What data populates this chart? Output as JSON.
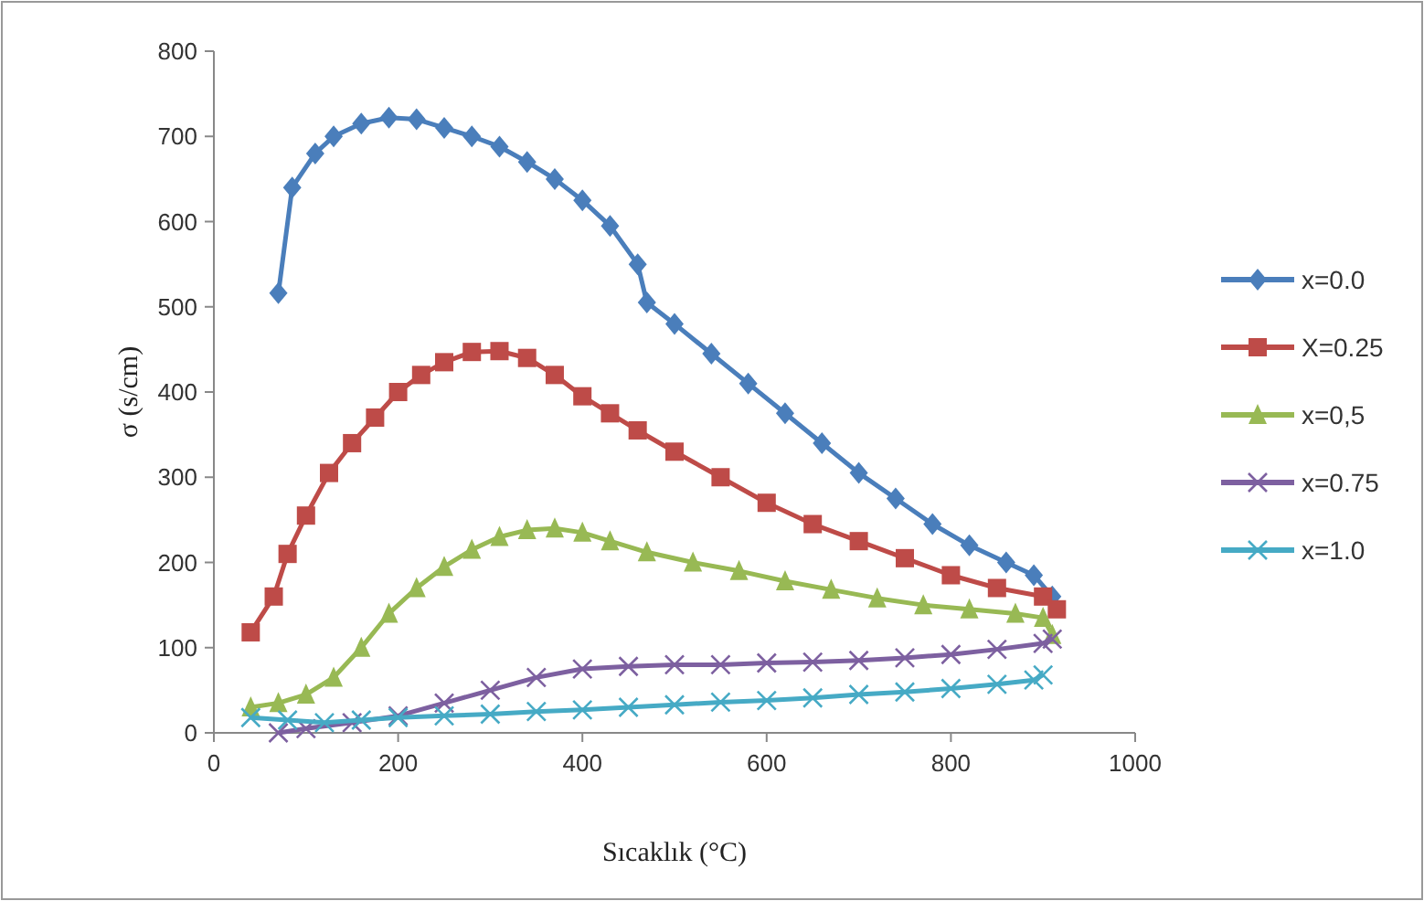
{
  "chart_data": {
    "type": "line",
    "xlabel": "Sıcaklık (°C)",
    "ylabel": "σ (s/cm)",
    "xlim": [
      0,
      1000
    ],
    "xticks": [
      0,
      200,
      400,
      600,
      800,
      1000
    ],
    "ylim": [
      0,
      800
    ],
    "yticks": [
      0,
      100,
      200,
      300,
      400,
      500,
      600,
      700,
      800
    ],
    "grid": false,
    "legend": "right",
    "series": [
      {
        "name": "x=0.0",
        "color": "#4a7ebb",
        "marker": "diamond",
        "x": [
          70,
          85,
          110,
          130,
          160,
          190,
          220,
          250,
          280,
          310,
          340,
          370,
          400,
          430,
          460,
          470,
          500,
          540,
          580,
          620,
          660,
          700,
          740,
          780,
          820,
          860,
          890,
          910
        ],
        "values": [
          516,
          640,
          680,
          700,
          715,
          722,
          720,
          710,
          700,
          688,
          670,
          650,
          625,
          595,
          550,
          505,
          480,
          445,
          410,
          375,
          340,
          305,
          275,
          245,
          220,
          200,
          185,
          160
        ]
      },
      {
        "name": "X=0.25",
        "color": "#be4b48",
        "marker": "square",
        "x": [
          40,
          65,
          80,
          100,
          125,
          150,
          175,
          200,
          225,
          250,
          280,
          310,
          340,
          370,
          400,
          430,
          460,
          500,
          550,
          600,
          650,
          700,
          750,
          800,
          850,
          900,
          915
        ],
        "values": [
          118,
          160,
          210,
          255,
          305,
          340,
          370,
          400,
          420,
          435,
          447,
          448,
          440,
          420,
          395,
          375,
          355,
          330,
          300,
          270,
          245,
          225,
          205,
          185,
          170,
          160,
          145
        ]
      },
      {
        "name": "x=0,5",
        "color": "#98b954",
        "marker": "triangle",
        "x": [
          40,
          70,
          100,
          130,
          160,
          190,
          220,
          250,
          280,
          310,
          340,
          370,
          400,
          430,
          470,
          520,
          570,
          620,
          670,
          720,
          770,
          820,
          870,
          900,
          910
        ],
        "values": [
          30,
          35,
          45,
          65,
          100,
          140,
          170,
          195,
          215,
          230,
          238,
          240,
          235,
          225,
          212,
          200,
          190,
          178,
          168,
          158,
          150,
          145,
          140,
          135,
          115
        ]
      },
      {
        "name": "x=0.75",
        "color": "#7d60a0",
        "marker": "cross",
        "x": [
          70,
          100,
          150,
          200,
          250,
          300,
          350,
          400,
          450,
          500,
          550,
          600,
          650,
          700,
          750,
          800,
          850,
          900,
          910
        ],
        "values": [
          0,
          5,
          12,
          20,
          35,
          50,
          65,
          75,
          78,
          80,
          80,
          82,
          83,
          85,
          88,
          92,
          98,
          105,
          110
        ]
      },
      {
        "name": "x=1.0",
        "color": "#46aac5",
        "marker": "cross",
        "x": [
          40,
          80,
          120,
          160,
          200,
          250,
          300,
          350,
          400,
          450,
          500,
          550,
          600,
          650,
          700,
          750,
          800,
          850,
          890,
          900
        ],
        "values": [
          18,
          15,
          12,
          15,
          18,
          20,
          22,
          25,
          27,
          30,
          33,
          36,
          38,
          41,
          45,
          48,
          52,
          57,
          62,
          68
        ]
      }
    ]
  }
}
